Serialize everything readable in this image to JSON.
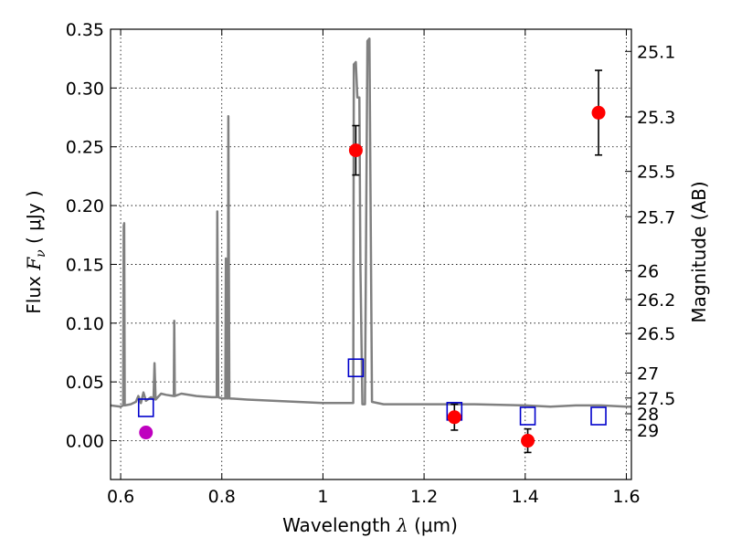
{
  "chart_data": {
    "type": "scatter",
    "title": "",
    "xlabel": "Wavelength",
    "xlabel_symbol": "λ",
    "xlabel_unit": "(μm)",
    "ylabel": "Flux",
    "ylabel_symbol": "F",
    "ylabel_subscript": "ν",
    "ylabel_unit": "( μJy )",
    "ylabel_right": "Magnitude (AB)",
    "xlim": [
      0.58,
      1.61
    ],
    "ylim": [
      -0.033,
      0.35
    ],
    "grid": true,
    "x_ticks": [
      {
        "value": 0.6,
        "label": "0.6"
      },
      {
        "value": 0.8,
        "label": "0.8"
      },
      {
        "value": 1.0,
        "label": "1"
      },
      {
        "value": 1.2,
        "label": "1.2"
      },
      {
        "value": 1.4,
        "label": "1.4"
      },
      {
        "value": 1.6,
        "label": "1.6"
      }
    ],
    "y_ticks": [
      {
        "value": 0.0,
        "label": "0.00"
      },
      {
        "value": 0.05,
        "label": "0.05"
      },
      {
        "value": 0.1,
        "label": "0.10"
      },
      {
        "value": 0.15,
        "label": "0.15"
      },
      {
        "value": 0.2,
        "label": "0.20"
      },
      {
        "value": 0.25,
        "label": "0.25"
      },
      {
        "value": 0.3,
        "label": "0.30"
      },
      {
        "value": 0.35,
        "label": "0.35"
      }
    ],
    "right_ticks": [
      {
        "label": "25.1",
        "mag": 25.1
      },
      {
        "label": "25.3",
        "mag": 25.3
      },
      {
        "label": "25.5",
        "mag": 25.5
      },
      {
        "label": "25.7",
        "mag": 25.7
      },
      {
        "label": "26",
        "mag": 26.0
      },
      {
        "label": "26.2",
        "mag": 26.2
      },
      {
        "label": "26.5",
        "mag": 26.5
      },
      {
        "label": "27",
        "mag": 27.0
      },
      {
        "label": "27.5",
        "mag": 27.5
      },
      {
        "label": "28",
        "mag": 28.0
      },
      {
        "label": "29",
        "mag": 29.0
      }
    ],
    "series": [
      {
        "kind": "spectrum",
        "color": "#808080",
        "points": [
          [
            0.58,
            0.03
          ],
          [
            0.6,
            0.029
          ],
          [
            0.605,
            0.03
          ],
          [
            0.606,
            0.183
          ],
          [
            0.607,
            0.185
          ],
          [
            0.608,
            0.03
          ],
          [
            0.62,
            0.031
          ],
          [
            0.63,
            0.033
          ],
          [
            0.635,
            0.038
          ],
          [
            0.64,
            0.032
          ],
          [
            0.645,
            0.041
          ],
          [
            0.65,
            0.034
          ],
          [
            0.66,
            0.037
          ],
          [
            0.665,
            0.035
          ],
          [
            0.667,
            0.066
          ],
          [
            0.669,
            0.035
          ],
          [
            0.68,
            0.04
          ],
          [
            0.69,
            0.039
          ],
          [
            0.705,
            0.038
          ],
          [
            0.706,
            0.102
          ],
          [
            0.707,
            0.038
          ],
          [
            0.72,
            0.04
          ],
          [
            0.75,
            0.038
          ],
          [
            0.78,
            0.037
          ],
          [
            0.79,
            0.037
          ],
          [
            0.791,
            0.195
          ],
          [
            0.793,
            0.037
          ],
          [
            0.8,
            0.036
          ],
          [
            0.807,
            0.036
          ],
          [
            0.808,
            0.155
          ],
          [
            0.81,
            0.036
          ],
          [
            0.812,
            0.036
          ],
          [
            0.813,
            0.276
          ],
          [
            0.815,
            0.036
          ],
          [
            0.85,
            0.035
          ],
          [
            0.9,
            0.034
          ],
          [
            0.95,
            0.033
          ],
          [
            1.0,
            0.032
          ],
          [
            1.05,
            0.032
          ],
          [
            1.06,
            0.032
          ],
          [
            1.061,
            0.32
          ],
          [
            1.065,
            0.322
          ],
          [
            1.068,
            0.292
          ],
          [
            1.072,
            0.292
          ],
          [
            1.074,
            0.15
          ],
          [
            1.078,
            0.031
          ],
          [
            1.083,
            0.031
          ],
          [
            1.088,
            0.34
          ],
          [
            1.092,
            0.342
          ],
          [
            1.097,
            0.033
          ],
          [
            1.12,
            0.031
          ],
          [
            1.2,
            0.031
          ],
          [
            1.3,
            0.031
          ],
          [
            1.4,
            0.03
          ],
          [
            1.45,
            0.029
          ],
          [
            1.5,
            0.03
          ],
          [
            1.55,
            0.03
          ],
          [
            1.6,
            0.029
          ],
          [
            1.61,
            0.029
          ]
        ]
      },
      {
        "kind": "observed",
        "marker": "filled-circle",
        "color": "#ff0000",
        "points": [
          {
            "x": 1.065,
            "y": 0.247,
            "err": 0.021
          },
          {
            "x": 1.26,
            "y": 0.02,
            "err": 0.011
          },
          {
            "x": 1.405,
            "y": 0.0,
            "err": 0.01
          },
          {
            "x": 1.545,
            "y": 0.279,
            "err": 0.036
          }
        ]
      },
      {
        "kind": "observed-optical",
        "marker": "filled-circle",
        "color": "#bf00bf",
        "points": [
          {
            "x": 0.65,
            "y": 0.007,
            "err": 0.004
          }
        ]
      },
      {
        "kind": "model-photometry",
        "marker": "open-square",
        "color": "#0000cc",
        "points": [
          {
            "x": 0.65,
            "y": 0.028
          },
          {
            "x": 1.065,
            "y": 0.062
          },
          {
            "x": 1.26,
            "y": 0.025
          },
          {
            "x": 1.405,
            "y": 0.021
          },
          {
            "x": 1.545,
            "y": 0.021
          }
        ]
      }
    ]
  }
}
